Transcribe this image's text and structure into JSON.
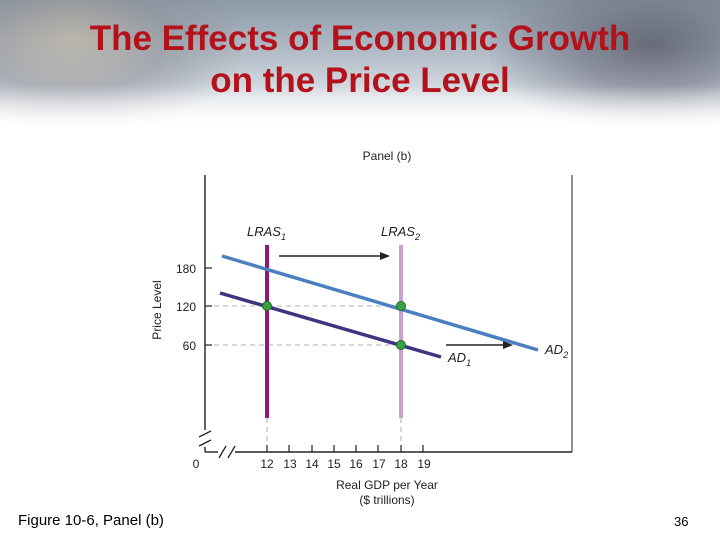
{
  "slide": {
    "title_line1": "The Effects of Economic Growth",
    "title_line2": "on the Price Level",
    "caption": "Figure 10-6, Panel (b)",
    "page_number": "36"
  },
  "colors": {
    "title": "#b3121b",
    "lras1": "#8a1a7a",
    "lras2": "#c9a0d0",
    "ad1": "#3d3580",
    "ad2": "#4a7fc0",
    "equilibrium_dot": "#3aa043"
  },
  "chart_data": {
    "type": "diagram",
    "title": "Panel (b)",
    "ylabel": "Price Level",
    "xlabel_line1": "Real GDP per Year",
    "xlabel_line2": "($ trillions)",
    "y_ticks": [
      "180",
      "120",
      "60"
    ],
    "x_ticks": [
      "0",
      "12",
      "13",
      "14",
      "15",
      "16",
      "17",
      "18",
      "19"
    ],
    "curves": {
      "lras1": {
        "label": "LRAS",
        "sub": "1",
        "x": 12
      },
      "lras2": {
        "label": "LRAS",
        "sub": "2",
        "x": 18
      },
      "ad1": {
        "label": "AD",
        "sub": "1",
        "points": [
          [
            11.8,
            140
          ],
          [
            19.2,
            52
          ]
        ]
      },
      "ad2": {
        "label": "AD",
        "sub": "2",
        "points": [
          [
            11.3,
            200
          ],
          [
            23.5,
            60
          ]
        ]
      }
    },
    "equilibria": [
      {
        "x": 12,
        "y": 120
      },
      {
        "x": 18,
        "y": 120
      },
      {
        "x": 18,
        "y": 60
      }
    ],
    "arrows": [
      "LRAS shift right",
      "AD shift right"
    ],
    "axis_break": true
  }
}
